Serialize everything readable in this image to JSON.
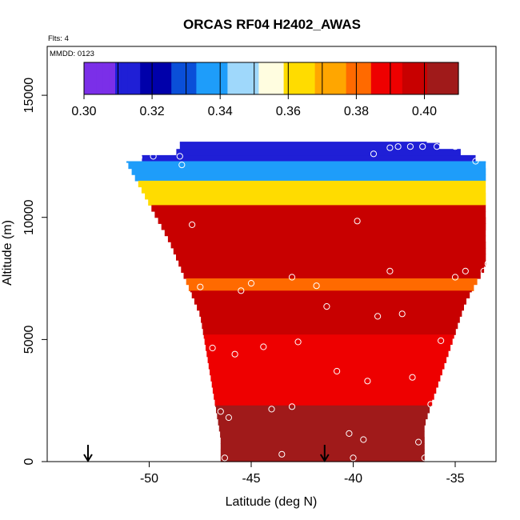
{
  "chart_data": {
    "type": "heatmap",
    "title": "ORCAS RF04 H2402_AWAS",
    "annotations": {
      "flights": "Flts: 4",
      "date": "MMDD: 0123"
    },
    "xlabel": "Latitude (deg N)",
    "ylabel": "Altitude (m)",
    "xlim": [
      -55,
      -33
    ],
    "ylim": [
      0,
      17000
    ],
    "x_ticks": [
      -50,
      -45,
      -40,
      -35
    ],
    "x_tick_labels": [
      "-50",
      "-45",
      "-40",
      "-35"
    ],
    "y_ticks": [
      0,
      5000,
      10000,
      15000
    ],
    "y_tick_labels": [
      "0",
      "5000",
      "10000",
      "15000"
    ],
    "colorbar": {
      "range": [
        0.3,
        0.41
      ],
      "ticks": [
        0.3,
        0.32,
        0.34,
        0.36,
        0.38,
        0.4
      ],
      "tick_labels": [
        "0.30",
        "0.32",
        "0.34",
        "0.36",
        "0.38",
        "0.40"
      ],
      "colors": [
        "#7b2fe8",
        "#1f1fd6",
        "#0000aa",
        "#0a4fd8",
        "#1e9dfa",
        "#9fd8fb",
        "#fffde0",
        "#ffdc00",
        "#ffa600",
        "#ff6a00",
        "#ee0000",
        "#c80000",
        "#a01a1a"
      ]
    },
    "arrows_latitude": [
      -53.0,
      -41.4
    ],
    "field": {
      "boundary_top_left": [
        [
          -51.2,
          12300
        ],
        [
          -48.5,
          12700
        ]
      ],
      "boundary_top_right": [
        [
          -36.5,
          13100
        ],
        [
          -34.0,
          12500
        ]
      ],
      "boundary_left": [
        [
          -51.2,
          12400
        ],
        [
          -49.0,
          9000
        ],
        [
          -47.5,
          6000
        ],
        [
          -46.5,
          1000
        ],
        [
          -46.5,
          0
        ]
      ],
      "boundary_right": [
        [
          -33.5,
          8000
        ],
        [
          -34.5,
          6500
        ],
        [
          -35.5,
          4000
        ],
        [
          -36.5,
          1500
        ],
        [
          -36.5,
          0
        ]
      ],
      "bands": [
        {
          "alt": [
            12300,
            13100
          ],
          "value": 0.315
        },
        {
          "alt": [
            11500,
            12300
          ],
          "value": 0.335
        },
        {
          "alt": [
            10500,
            11500
          ],
          "value": 0.365
        },
        {
          "alt": [
            7500,
            10500
          ],
          "value": 0.396
        },
        {
          "alt": [
            7000,
            7500
          ],
          "value": 0.382
        },
        {
          "alt": [
            5200,
            7000
          ],
          "value": 0.394
        },
        {
          "alt": [
            3800,
            5200
          ],
          "value": 0.385
        },
        {
          "alt": [
            2300,
            3800
          ],
          "value": 0.392
        },
        {
          "alt": [
            0,
            2300
          ],
          "value": 0.402
        }
      ]
    },
    "sample_points": [
      {
        "lat": -50.9,
        "alt": 12450
      },
      {
        "lat": -50.5,
        "alt": 12450
      },
      {
        "lat": -49.8,
        "alt": 12500
      },
      {
        "lat": -48.5,
        "alt": 12500
      },
      {
        "lat": -48.4,
        "alt": 12150
      },
      {
        "lat": -39.0,
        "alt": 12600
      },
      {
        "lat": -38.2,
        "alt": 12850
      },
      {
        "lat": -37.8,
        "alt": 12900
      },
      {
        "lat": -37.2,
        "alt": 12900
      },
      {
        "lat": -36.6,
        "alt": 12900
      },
      {
        "lat": -35.9,
        "alt": 12900
      },
      {
        "lat": -35.0,
        "alt": 12900
      },
      {
        "lat": -34.0,
        "alt": 12300
      },
      {
        "lat": -47.9,
        "alt": 9700
      },
      {
        "lat": -39.8,
        "alt": 9850
      },
      {
        "lat": -45.0,
        "alt": 7300
      },
      {
        "lat": -45.5,
        "alt": 7000
      },
      {
        "lat": -47.5,
        "alt": 7150
      },
      {
        "lat": -43.0,
        "alt": 7550
      },
      {
        "lat": -41.8,
        "alt": 7200
      },
      {
        "lat": -38.2,
        "alt": 7800
      },
      {
        "lat": -35.0,
        "alt": 7550
      },
      {
        "lat": -34.5,
        "alt": 7800
      },
      {
        "lat": -33.6,
        "alt": 7800
      },
      {
        "lat": -33.4,
        "alt": 8100
      },
      {
        "lat": -41.3,
        "alt": 6350
      },
      {
        "lat": -38.8,
        "alt": 5950
      },
      {
        "lat": -37.6,
        "alt": 6050
      },
      {
        "lat": -46.9,
        "alt": 4650
      },
      {
        "lat": -45.8,
        "alt": 4400
      },
      {
        "lat": -44.4,
        "alt": 4700
      },
      {
        "lat": -42.7,
        "alt": 4900
      },
      {
        "lat": -35.7,
        "alt": 4950
      },
      {
        "lat": -40.8,
        "alt": 3700
      },
      {
        "lat": -39.3,
        "alt": 3300
      },
      {
        "lat": -37.1,
        "alt": 3450
      },
      {
        "lat": -46.5,
        "alt": 2050
      },
      {
        "lat": -46.1,
        "alt": 1800
      },
      {
        "lat": -44.0,
        "alt": 2150
      },
      {
        "lat": -43.0,
        "alt": 2250
      },
      {
        "lat": -36.2,
        "alt": 2350
      },
      {
        "lat": -40.2,
        "alt": 1150
      },
      {
        "lat": -39.5,
        "alt": 900
      },
      {
        "lat": -36.8,
        "alt": 800
      },
      {
        "lat": -43.5,
        "alt": 300
      },
      {
        "lat": -46.3,
        "alt": 150
      },
      {
        "lat": -40.0,
        "alt": 150
      },
      {
        "lat": -36.5,
        "alt": 150
      }
    ]
  }
}
